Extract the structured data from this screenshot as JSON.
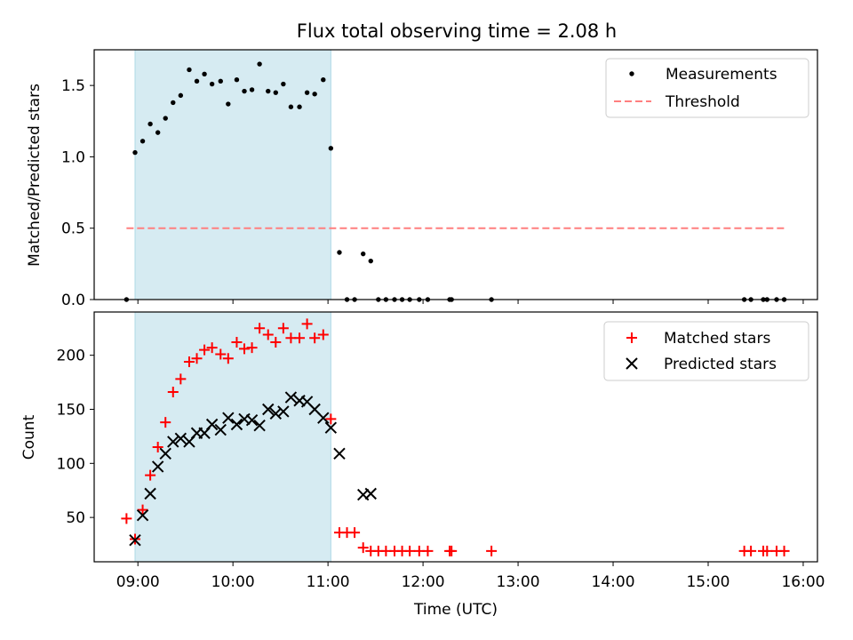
{
  "chart_data": {
    "type": "scatter",
    "title": "Flux total observing time = 2.08 h",
    "xlabel": "Time (UTC)",
    "x_ticks": [
      "09:00",
      "10:00",
      "11:00",
      "12:00",
      "13:00",
      "14:00",
      "15:00",
      "16:00"
    ],
    "shaded_interval": [
      8.97,
      11.03
    ],
    "panels": [
      {
        "ylabel": "Matched/Predicted stars",
        "ylim": [
          0,
          1.75
        ],
        "yticks": [
          "0.0",
          "0.5",
          "1.0",
          "1.5"
        ],
        "legend_position": "top-right",
        "series": [
          {
            "name": "Measurements",
            "marker": "dot",
            "color": "#000000",
            "x": [
              8.88,
              8.97,
              9.05,
              9.13,
              9.21,
              9.29,
              9.37,
              9.45,
              9.54,
              9.62,
              9.7,
              9.78,
              9.87,
              9.95,
              10.04,
              10.12,
              10.2,
              10.28,
              10.37,
              10.45,
              10.53,
              10.61,
              10.7,
              10.78,
              10.86,
              10.95,
              11.03,
              11.12,
              11.2,
              11.28,
              11.37,
              11.45,
              11.53,
              11.61,
              11.7,
              11.78,
              11.86,
              11.96,
              12.05,
              12.28,
              12.3,
              12.72,
              15.38,
              15.45,
              15.58,
              15.62,
              15.72,
              15.8
            ],
            "y": [
              0.0,
              1.03,
              1.11,
              1.23,
              1.17,
              1.27,
              1.38,
              1.43,
              1.61,
              1.53,
              1.58,
              1.51,
              1.53,
              1.37,
              1.54,
              1.46,
              1.47,
              1.65,
              1.46,
              1.45,
              1.51,
              1.35,
              1.35,
              1.45,
              1.44,
              1.54,
              1.06,
              0.33,
              0.0,
              0.0,
              0.32,
              0.27,
              0.0,
              0.0,
              0.0,
              0.0,
              0.0,
              0.0,
              0.0,
              0.0,
              0.0,
              0.0,
              0.0,
              0.0,
              0.0,
              0.0,
              0.0,
              0.0
            ]
          },
          {
            "name": "Threshold",
            "marker": "dashed-line",
            "color": "#ff7f7f",
            "x": [
              8.88,
              15.8
            ],
            "y": [
              0.5,
              0.5
            ]
          }
        ]
      },
      {
        "ylabel": "Count",
        "ylim": [
          9,
          240
        ],
        "yticks": [
          "50",
          "100",
          "150",
          "200"
        ],
        "legend_position": "top-right",
        "series": [
          {
            "name": "Matched stars",
            "marker": "plus",
            "color": "#ff0000",
            "x": [
              8.88,
              8.97,
              9.05,
              9.13,
              9.21,
              9.29,
              9.37,
              9.45,
              9.54,
              9.62,
              9.7,
              9.78,
              9.87,
              9.95,
              10.04,
              10.12,
              10.2,
              10.28,
              10.37,
              10.45,
              10.53,
              10.61,
              10.7,
              10.78,
              10.86,
              10.95,
              11.03,
              11.12,
              11.2,
              11.28,
              11.37,
              11.45,
              11.53,
              11.61,
              11.7,
              11.78,
              11.86,
              11.96,
              12.05,
              12.28,
              12.3,
              12.72,
              15.38,
              15.45,
              15.58,
              15.62,
              15.72,
              15.8
            ],
            "y": [
              49,
              30,
              57,
              89,
              115,
              138,
              166,
              178,
              194,
              197,
              205,
              207,
              201,
              197,
              212,
              206,
              207,
              225,
              219,
              212,
              225,
              216,
              216,
              229,
              216,
              219,
              141,
              36,
              36,
              36,
              22,
              19,
              19,
              19,
              19,
              19,
              19,
              19,
              19,
              19,
              19,
              19,
              19,
              19,
              19,
              19,
              19,
              19
            ]
          },
          {
            "name": "Predicted stars",
            "marker": "x",
            "color": "#000000",
            "x": [
              8.97,
              9.05,
              9.13,
              9.21,
              9.29,
              9.37,
              9.45,
              9.54,
              9.62,
              9.7,
              9.78,
              9.87,
              9.95,
              10.04,
              10.12,
              10.2,
              10.28,
              10.37,
              10.45,
              10.53,
              10.61,
              10.7,
              10.78,
              10.86,
              10.95,
              11.03,
              11.12,
              11.37,
              11.45
            ],
            "y": [
              29,
              52,
              72,
              97,
              109,
              120,
              123,
              120,
              128,
              128,
              136,
              131,
              142,
              136,
              141,
              140,
              135,
              150,
              146,
              148,
              161,
              158,
              157,
              150,
              142,
              133,
              109,
              71,
              72
            ]
          }
        ]
      }
    ]
  }
}
